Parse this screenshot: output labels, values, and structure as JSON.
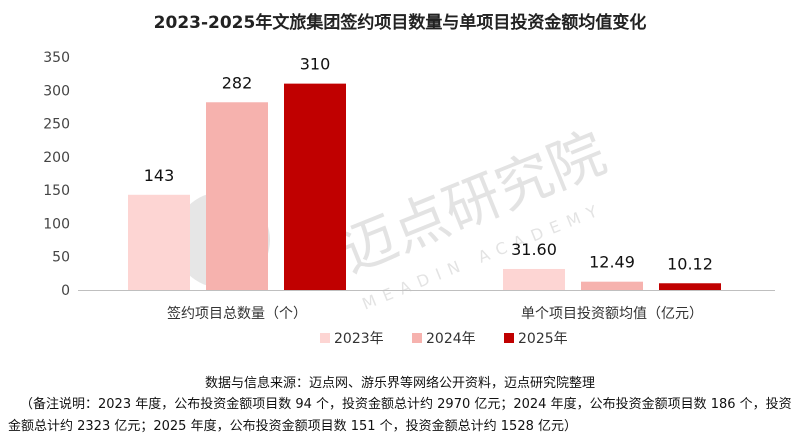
{
  "chart_data": {
    "type": "bar",
    "title": "2023-2025年文旅集团签约项目数量与单项目投资金额均值变化",
    "categories": [
      "签约项目总数量（个）",
      "单个项目投资额均值（亿元）"
    ],
    "series": [
      {
        "name": "2023年",
        "values": [
          143,
          31.6
        ],
        "labels": [
          "143",
          "31.60"
        ],
        "color": "#fdd5d3"
      },
      {
        "name": "2024年",
        "values": [
          282,
          12.49
        ],
        "labels": [
          "282",
          "12.49"
        ],
        "color": "#f6b2ae"
      },
      {
        "name": "2025年",
        "values": [
          310,
          10.12
        ],
        "labels": [
          "310",
          "10.12"
        ],
        "color": "#c00000"
      }
    ],
    "yticks": [
      "0",
      "50",
      "100",
      "150",
      "200",
      "250",
      "300",
      "350"
    ],
    "ylim": [
      0,
      350
    ],
    "legend_position": "bottom",
    "grid": false
  },
  "watermark": {
    "text_cn": "迈点研究院",
    "text_en": "MEADIN ACADEMY"
  },
  "footer": {
    "source": "数据与信息来源：迈点网、游乐界等网络公开资料，迈点研究院整理",
    "note": "（备注说明：2023 年度，公布投资金额项目数 94 个，投资金额总计约 2970 亿元；2024 年度，公布投资金额项目数 186 个，投资金额总计约 2323 亿元；2025 年度，公布投资金额项目数 151 个，投资金额总计约 1528 亿元）"
  }
}
